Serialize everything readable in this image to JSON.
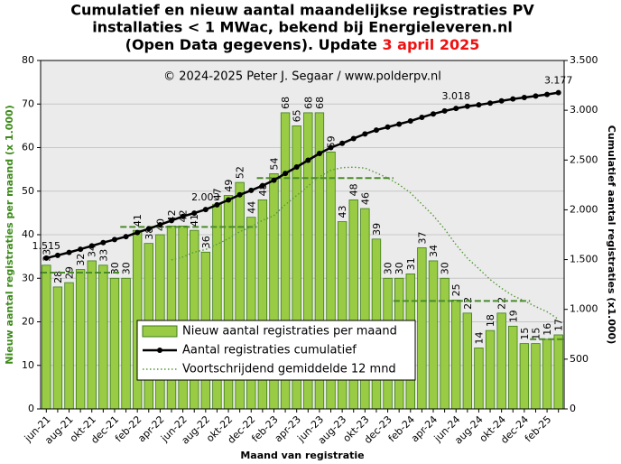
{
  "chart_data": {
    "type": "bar_line",
    "title": [
      "Cumulatief en nieuw aantal maandelijkse registraties PV",
      "installaties < 1 MWac, bekend bij Energieleveren.nl",
      "(Open Data gegevens). Update "
    ],
    "title_highlight": "3 april 2025",
    "title_highlight_color": "#ee1111",
    "annotation": "© 2024-2025 Peter J. Segaar / www.polderpv.nl",
    "x_label": "Maand van registratie",
    "y_label": "Nieuw aantal registraties per maand (x 1.000)",
    "y2_label": "Cumulatief aantal registraties (x1.000)",
    "categories": [
      "jun-21",
      null,
      "aug-21",
      null,
      "okt-21",
      null,
      "dec-21",
      null,
      "feb-22",
      null,
      "apr-22",
      null,
      "jun-22",
      null,
      "aug-22",
      null,
      "okt-22",
      null,
      "dec-22",
      null,
      "feb-23",
      null,
      "apr-23",
      null,
      "jun-23",
      null,
      "aug-23",
      null,
      "okt-23",
      null,
      "dec-23",
      null,
      "feb-24",
      null,
      "apr-24",
      null,
      "jun-24",
      null,
      "aug-24",
      null,
      "okt-24",
      null,
      "dec-24",
      null,
      "feb-25",
      null
    ],
    "series": [
      {
        "name": "Nieuw aantal registraties per maand",
        "type": "bar",
        "color": "#99cc44",
        "edge": "#3d7a1a",
        "values": [
          33,
          28,
          29,
          32,
          34,
          33,
          30,
          30,
          41,
          38,
          40,
          42,
          42,
          41,
          36,
          47,
          49,
          52,
          44,
          48,
          54,
          68,
          65,
          68,
          68,
          59,
          43,
          48,
          46,
          39,
          30,
          30,
          31,
          37,
          34,
          30,
          25,
          22,
          14,
          18,
          22,
          19,
          15,
          15,
          16,
          17
        ]
      },
      {
        "name": "Aantal registraties cumulatief",
        "type": "line",
        "axis": "y2",
        "color": "#000000",
        "markers": true,
        "values": [
          1515,
          1543,
          1572,
          1604,
          1638,
          1671,
          1701,
          1731,
          1772,
          1810,
          1850,
          1892,
          1934,
          1967,
          2003,
          2050,
          2099,
          2151,
          2195,
          2243,
          2297,
          2365,
          2430,
          2498,
          2566,
          2625,
          2668,
          2716,
          2762,
          2801,
          2831,
          2861,
          2892,
          2929,
          2963,
          2993,
          3018,
          3040,
          3054,
          3072,
          3094,
          3113,
          3128,
          3143,
          3159,
          3177
        ],
        "value_labels": [
          "1.515",
          null,
          null,
          null,
          null,
          null,
          null,
          null,
          null,
          null,
          null,
          null,
          null,
          null,
          "2.003",
          null,
          null,
          null,
          null,
          null,
          null,
          null,
          null,
          null,
          null,
          null,
          null,
          null,
          null,
          null,
          null,
          null,
          null,
          null,
          null,
          null,
          "3.018",
          null,
          null,
          null,
          null,
          null,
          null,
          null,
          null,
          "3.177"
        ]
      },
      {
        "name": "Voortschrijdend gemiddelde 12 mnd",
        "type": "line",
        "color": "#55993a",
        "dash": "dotted",
        "values": [
          null,
          null,
          null,
          null,
          null,
          null,
          null,
          null,
          null,
          null,
          null,
          34.2,
          34.9,
          36.0,
          36.6,
          37.8,
          39.1,
          40.7,
          41.8,
          43.3,
          44.4,
          46.9,
          49.0,
          51.2,
          53.3,
          54.8,
          55.4,
          55.5,
          55.3,
          54.2,
          53.0,
          51.5,
          49.6,
          47.0,
          44.4,
          41.3,
          37.7,
          34.6,
          32.2,
          29.7,
          27.7,
          26.0,
          24.8,
          23.5,
          22.3,
          20.6
        ]
      }
    ],
    "annual_means": [
      {
        "span": [
          0,
          6
        ],
        "value": 31.3
      },
      {
        "span": [
          7,
          18
        ],
        "value": 41.8
      },
      {
        "span": [
          19,
          30
        ],
        "value": 53.0
      },
      {
        "span": [
          31,
          42
        ],
        "value": 24.8
      },
      {
        "span": [
          43,
          45
        ],
        "value": 16.0
      }
    ],
    "annual_mean_color": "#4a8a2a",
    "ylim": [
      0,
      80
    ],
    "yticks": [
      0,
      10,
      20,
      30,
      40,
      50,
      60,
      70,
      80
    ],
    "y2lim": [
      0,
      3500
    ],
    "y2ticks": [
      0,
      500,
      {
        "value": 1000,
        "label": "1.000"
      },
      {
        "value": 1500,
        "label": "1.500"
      },
      {
        "value": 2000,
        "label": "2.000"
      },
      {
        "value": 2500,
        "label": "2.500"
      },
      {
        "value": 3000,
        "label": "3.000"
      },
      {
        "value": 3500,
        "label": "3.500"
      }
    ],
    "grid": true,
    "legend": "bottom-center"
  }
}
